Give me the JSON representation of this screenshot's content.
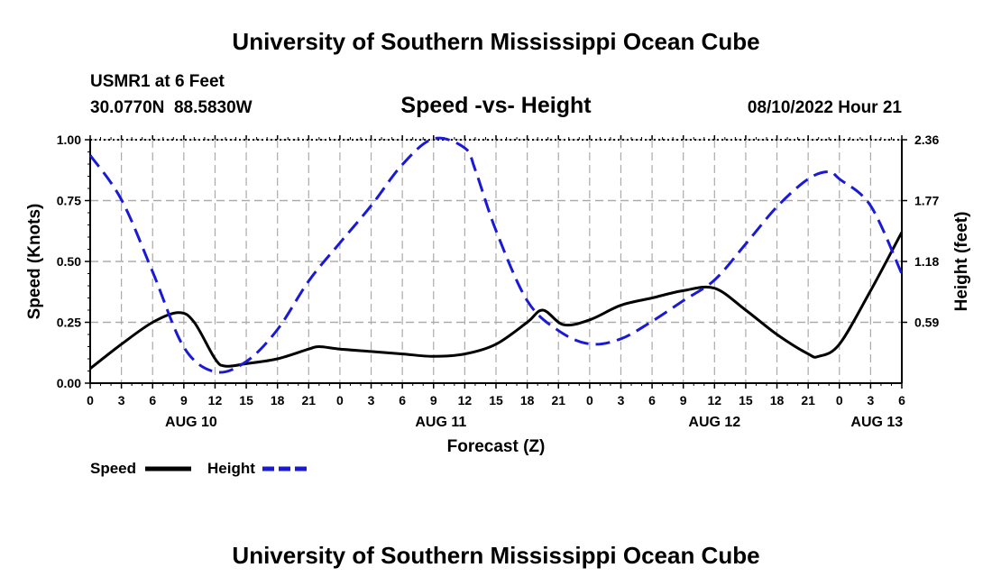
{
  "header": {
    "top_title": "University of Southern Mississippi Ocean Cube",
    "station": "USMR1 at 6 Feet",
    "coords": "30.0770N  88.5830W",
    "datetime": "08/10/2022 Hour 21",
    "bottom_title": "University of Southern Mississippi Ocean Cube"
  },
  "legend": {
    "speed_label": "Speed",
    "height_label": "Height"
  },
  "colors": {
    "speed": "#000000",
    "height": "#1a1ad6",
    "grid": "#aaaaaa"
  },
  "chart_data": {
    "type": "line",
    "title": "Speed -vs- Height",
    "xlabel": "Forecast (Z)",
    "ylabel": "Speed (Knots)",
    "y2label": "Height (feet)",
    "xlim": [
      0,
      78
    ],
    "ylim": [
      0,
      1.0
    ],
    "y2lim": [
      0,
      2.36
    ],
    "x_tick_labels": [
      "0",
      "3",
      "6",
      "9",
      "12",
      "15",
      "18",
      "21",
      "0",
      "3",
      "6",
      "9",
      "12",
      "15",
      "18",
      "21",
      "0",
      "3",
      "6",
      "9",
      "12",
      "15",
      "18",
      "21",
      "0",
      "3",
      "6"
    ],
    "y_tick_labels": [
      "0.00",
      "0.25",
      "0.50",
      "0.75",
      "1.00"
    ],
    "y2_tick_labels": [
      "0.59",
      "1.18",
      "1.77",
      "2.36"
    ],
    "date_labels": [
      {
        "text": "AUG 10",
        "hour": 9.7
      },
      {
        "text": "AUG 11",
        "hour": 33.7
      },
      {
        "text": "AUG 12",
        "hour": 60
      },
      {
        "text": "AUG 13",
        "hour": 75.6
      }
    ],
    "series": [
      {
        "name": "Speed",
        "axis": "left",
        "style": "solid",
        "x": [
          0,
          3,
          6,
          8.5,
          10,
          12,
          13,
          15,
          18,
          21,
          22,
          24,
          27,
          30,
          33,
          36,
          39,
          42,
          43.5,
          45.5,
          48,
          51,
          54,
          57,
          60,
          63,
          66,
          69,
          70,
          72,
          75,
          78
        ],
        "values": [
          0.06,
          0.16,
          0.25,
          0.29,
          0.25,
          0.1,
          0.07,
          0.08,
          0.1,
          0.14,
          0.15,
          0.14,
          0.13,
          0.12,
          0.11,
          0.12,
          0.16,
          0.25,
          0.3,
          0.24,
          0.26,
          0.32,
          0.35,
          0.38,
          0.39,
          0.3,
          0.2,
          0.12,
          0.11,
          0.16,
          0.38,
          0.62
        ]
      },
      {
        "name": "Height",
        "axis": "right",
        "style": "dashed",
        "x": [
          0,
          3,
          6,
          9,
          12,
          15,
          18,
          21,
          24,
          27,
          30,
          33,
          36,
          37,
          39,
          42,
          45,
          48,
          51,
          54,
          57,
          60,
          63,
          66,
          69,
          71,
          72,
          75,
          78
        ],
        "values": [
          2.21,
          1.78,
          1.08,
          0.35,
          0.11,
          0.21,
          0.52,
          0.99,
          1.36,
          1.72,
          2.12,
          2.37,
          2.28,
          2.07,
          1.48,
          0.8,
          0.51,
          0.38,
          0.43,
          0.6,
          0.8,
          1.0,
          1.35,
          1.71,
          1.98,
          2.05,
          1.98,
          1.72,
          1.06
        ]
      }
    ]
  }
}
